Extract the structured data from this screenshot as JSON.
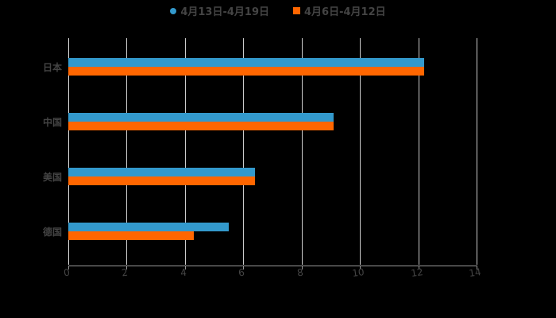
{
  "chart_data": {
    "type": "bar",
    "orientation": "horizontal",
    "title": "",
    "xlabel": "",
    "ylabel": "",
    "categories": [
      "日本",
      "中国",
      "美国",
      "德国"
    ],
    "series": [
      {
        "name": "4月13日-4月19日",
        "color": "#3399CC",
        "values": [
          12.2,
          9.1,
          6.4,
          5.5
        ]
      },
      {
        "name": "4月6日-4月12日",
        "color": "#FF6600",
        "values": [
          12.2,
          9.1,
          6.4,
          4.3
        ]
      }
    ],
    "xlim": [
      0,
      14
    ],
    "x_ticks": [
      "0",
      "2",
      "4",
      "6",
      "8",
      "10",
      "12",
      "14"
    ],
    "grid": true,
    "legend_position": "top"
  },
  "legend": {
    "items": [
      {
        "label": "4月13日-4月19日",
        "color": "#3399CC",
        "marker": "circle"
      },
      {
        "label": "4月6日-4月12日",
        "color": "#FF6600",
        "marker": "square"
      }
    ]
  }
}
